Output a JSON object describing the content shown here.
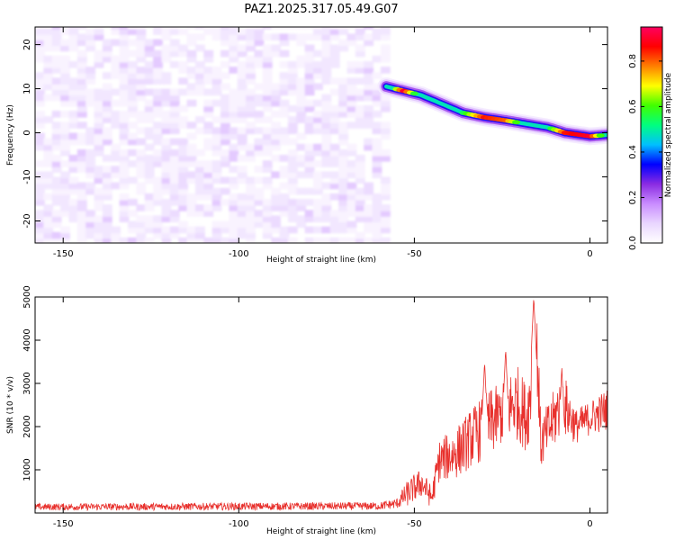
{
  "title": "PAZ1.2025.317.05.49.G07",
  "chart_data": [
    {
      "type": "heatmap",
      "name": "spectrogram",
      "xlabel": "Height of straight line (km)",
      "ylabel": "Frequency (Hz)",
      "xlim": [
        -158,
        5
      ],
      "ylim": [
        -25,
        24
      ],
      "xticks": [
        -150,
        -100,
        -50,
        0
      ],
      "yticks": [
        20,
        10,
        0,
        -10,
        -20
      ],
      "colorbar": {
        "label": "Normalized spectral amplitude",
        "range": [
          0,
          0.95
        ],
        "ticks": [
          0.0,
          0.2,
          0.4,
          0.6,
          0.8
        ],
        "colors": [
          "#ffffff",
          "#e9d6ff",
          "#c98cff",
          "#8a2be2",
          "#0000ff",
          "#00bfff",
          "#00ff80",
          "#40ff00",
          "#ffff00",
          "#ff8000",
          "#ff0000",
          "#ff0060"
        ]
      },
      "noise_region": {
        "x_range": [
          -158,
          -58
        ],
        "y_range": [
          -25,
          24
        ],
        "typical_amplitude": 0.1
      },
      "signal_track": {
        "points": [
          {
            "x": -58,
            "freq": 10.5,
            "amp": 0.3
          },
          {
            "x": -53,
            "freq": 9.5,
            "amp": 0.9
          },
          {
            "x": -48,
            "freq": 8.5,
            "amp": 0.35
          },
          {
            "x": -42,
            "freq": 6.5,
            "amp": 0.45
          },
          {
            "x": -36,
            "freq": 4.5,
            "amp": 0.55
          },
          {
            "x": -30,
            "freq": 3.5,
            "amp": 0.85
          },
          {
            "x": -24,
            "freq": 2.8,
            "amp": 0.8
          },
          {
            "x": -18,
            "freq": 2.0,
            "amp": 0.4
          },
          {
            "x": -12,
            "freq": 1.2,
            "amp": 0.5
          },
          {
            "x": -7,
            "freq": 0.0,
            "amp": 0.85
          },
          {
            "x": 0,
            "freq": -0.8,
            "amp": 0.9
          },
          {
            "x": 5,
            "freq": -0.5,
            "amp": 0.4
          }
        ]
      }
    },
    {
      "type": "line",
      "name": "snr",
      "xlabel": "Height of straight line (km)",
      "ylabel": "SNR (10 * v/v)",
      "xlim": [
        -158,
        5
      ],
      "ylim": [
        0,
        5000
      ],
      "xticks": [
        -150,
        -100,
        -50,
        0
      ],
      "yticks": [
        1000,
        2000,
        3000,
        4000,
        5000
      ],
      "color": "#e8302c",
      "envelope": [
        {
          "x": -158,
          "mean": 140,
          "spread": 80
        },
        {
          "x": -60,
          "mean": 160,
          "spread": 90
        },
        {
          "x": -55,
          "mean": 220,
          "spread": 120
        },
        {
          "x": -52,
          "mean": 450,
          "spread": 300
        },
        {
          "x": -48,
          "mean": 700,
          "spread": 350
        },
        {
          "x": -45,
          "mean": 350,
          "spread": 250
        },
        {
          "x": -43,
          "mean": 1200,
          "spread": 500
        },
        {
          "x": -38,
          "mean": 1400,
          "spread": 600
        },
        {
          "x": -33,
          "mean": 1800,
          "spread": 700
        },
        {
          "x": -28,
          "mean": 2100,
          "spread": 800
        },
        {
          "x": -25,
          "mean": 2300,
          "spread": 700
        },
        {
          "x": -21,
          "mean": 2600,
          "spread": 900
        },
        {
          "x": -18,
          "mean": 2200,
          "spread": 800
        },
        {
          "x": -15,
          "mean": 3700,
          "spread": 1000
        },
        {
          "x": -14,
          "mean": 1600,
          "spread": 600
        },
        {
          "x": -10,
          "mean": 2200,
          "spread": 700
        },
        {
          "x": -8,
          "mean": 2600,
          "spread": 800
        },
        {
          "x": -4,
          "mean": 2000,
          "spread": 400
        },
        {
          "x": 0,
          "mean": 2200,
          "spread": 400
        },
        {
          "x": 5,
          "mean": 2400,
          "spread": 500
        }
      ],
      "peaks": [
        {
          "x": -16,
          "value": 5000
        },
        {
          "x": -24,
          "value": 3800
        },
        {
          "x": -8,
          "value": 3350
        },
        {
          "x": -30,
          "value": 3500
        }
      ]
    }
  ]
}
